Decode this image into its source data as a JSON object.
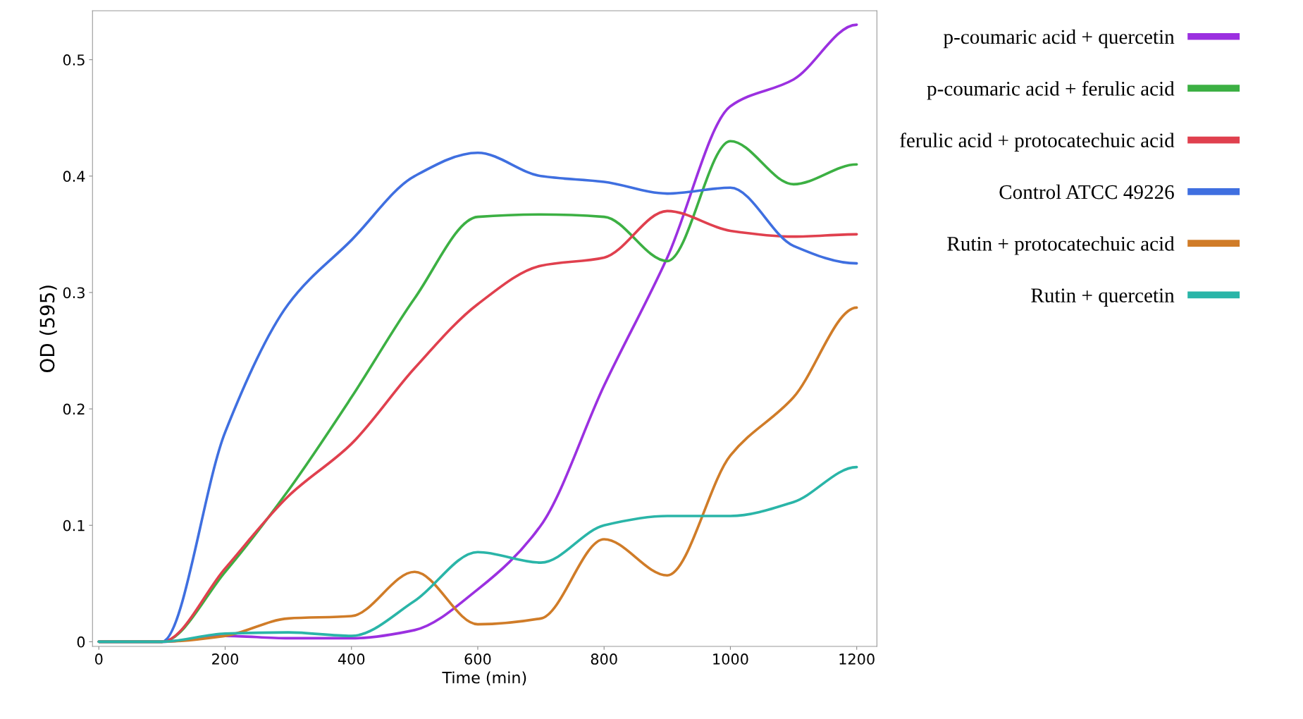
{
  "chart_data": {
    "type": "line",
    "xlabel": "Time (min)",
    "ylabel": "OD (595)",
    "x": [
      0,
      100,
      200,
      300,
      400,
      500,
      600,
      700,
      800,
      900,
      1000,
      1100,
      1200
    ],
    "xlim": [
      -10,
      1232
    ],
    "ylim": [
      -0.004,
      0.542
    ],
    "xticks": [
      0,
      200,
      400,
      600,
      800,
      1000,
      1200
    ],
    "yticks": [
      0,
      0.1,
      0.2,
      0.3,
      0.4,
      0.5
    ],
    "grid": false,
    "legend": "right",
    "marker": "none",
    "line_style": "solid",
    "series": [
      {
        "name": "p-coumaric acid + quercetin",
        "color": "#9b30e0",
        "values": [
          0,
          0,
          0.005,
          0.003,
          0.003,
          0.01,
          0.045,
          0.1,
          0.22,
          0.33,
          0.46,
          0.483,
          0.53
        ]
      },
      {
        "name": "p-coumaric acid + ferulic acid",
        "color": "#3cb043",
        "values": [
          0,
          0,
          0.06,
          0.13,
          0.21,
          0.295,
          0.365,
          0.367,
          0.365,
          0.327,
          0.43,
          0.393,
          0.41
        ]
      },
      {
        "name": "ferulic acid + protocatechuic acid",
        "color": "#e0404e",
        "values": [
          0,
          0,
          0.063,
          0.125,
          0.17,
          0.235,
          0.29,
          0.323,
          0.33,
          0.37,
          0.353,
          0.348,
          0.35
        ]
      },
      {
        "name": "Control ATCC 49226",
        "color": "#3f6fe0",
        "values": [
          0,
          0,
          0.18,
          0.29,
          0.345,
          0.4,
          0.42,
          0.4,
          0.395,
          0.385,
          0.39,
          0.34,
          0.325
        ]
      },
      {
        "name": "Rutin + protocatechuic acid",
        "color": "#d07c28",
        "values": [
          0,
          0,
          0.005,
          0.02,
          0.022,
          0.06,
          0.015,
          0.02,
          0.088,
          0.057,
          0.16,
          0.21,
          0.287
        ]
      },
      {
        "name": "Rutin + quercetin",
        "color": "#2ab5a8",
        "values": [
          0,
          0,
          0.007,
          0.008,
          0.005,
          0.035,
          0.077,
          0.068,
          0.1,
          0.108,
          0.108,
          0.12,
          0.15
        ]
      }
    ]
  }
}
